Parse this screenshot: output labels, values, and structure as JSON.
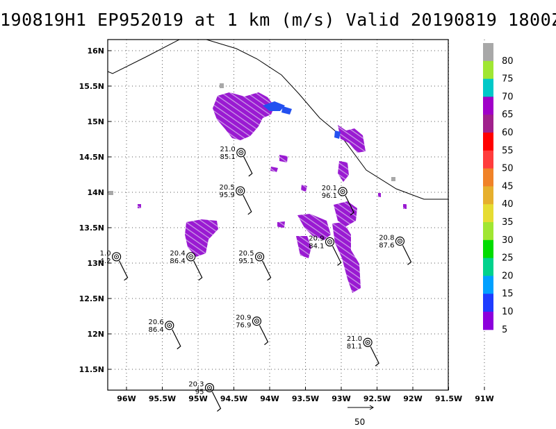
{
  "title": "190819H1  EP952019 at 1 km (m/s) Valid 20190819  1800Z",
  "lat_labels": [
    "16N",
    "15.5N",
    "15N",
    "14.5N",
    "14N",
    "13.5N",
    "13N",
    "12.5N",
    "12N",
    "11.5N"
  ],
  "lon_labels": [
    "96W",
    "95.5W",
    "95W",
    "94.5W",
    "94W",
    "93.5W",
    "93W",
    "92.5W",
    "92W",
    "91.5W",
    "91W"
  ],
  "scale_label": "50",
  "colorbar": {
    "labels": [
      "80",
      "75",
      "70",
      "65",
      "60",
      "55",
      "50",
      "45",
      "40",
      "35",
      "30",
      "25",
      "20",
      "15",
      "10",
      "5"
    ],
    "colors": [
      "#a8a8a8",
      "#a0e632",
      "#00c8c8",
      "#a000c8",
      "#a0208c",
      "#ff0000",
      "#ff3c3c",
      "#f08228",
      "#e6af2d",
      "#e6dc32",
      "#a0e632",
      "#00dc00",
      "#00d28c",
      "#00a0ff",
      "#1e3cff",
      "#8c00dc"
    ]
  },
  "dropsondes": [
    {
      "lon": -94.4,
      "lat": 14.56,
      "t": "21.0",
      "p": "85.1"
    },
    {
      "lon": -94.41,
      "lat": 14.02,
      "t": "20.5",
      "p": "95.9"
    },
    {
      "lon": -92.98,
      "lat": 14.01,
      "t": "20.1",
      "p": "96.1"
    },
    {
      "lon": -93.16,
      "lat": 13.3,
      "t": "20.9",
      "p": "84.1"
    },
    {
      "lon": -92.18,
      "lat": 13.31,
      "t": "20.8",
      "p": "87.6"
    },
    {
      "lon": -96.14,
      "lat": 13.09,
      "t": "1.0",
      "p": "4.2"
    },
    {
      "lon": -95.1,
      "lat": 13.09,
      "t": "20.4",
      "p": "86.4"
    },
    {
      "lon": -94.14,
      "lat": 13.09,
      "t": "20.5",
      "p": "95.1"
    },
    {
      "lon": -95.4,
      "lat": 12.12,
      "t": "20.6",
      "p": "86.4"
    },
    {
      "lon": -94.18,
      "lat": 12.18,
      "t": "20.9",
      "p": "76.9"
    },
    {
      "lon": -92.63,
      "lat": 11.88,
      "t": "21.0",
      "p": "81.1"
    },
    {
      "lon": -94.84,
      "lat": 11.24,
      "t": "20.3",
      "p": "95"
    }
  ]
}
